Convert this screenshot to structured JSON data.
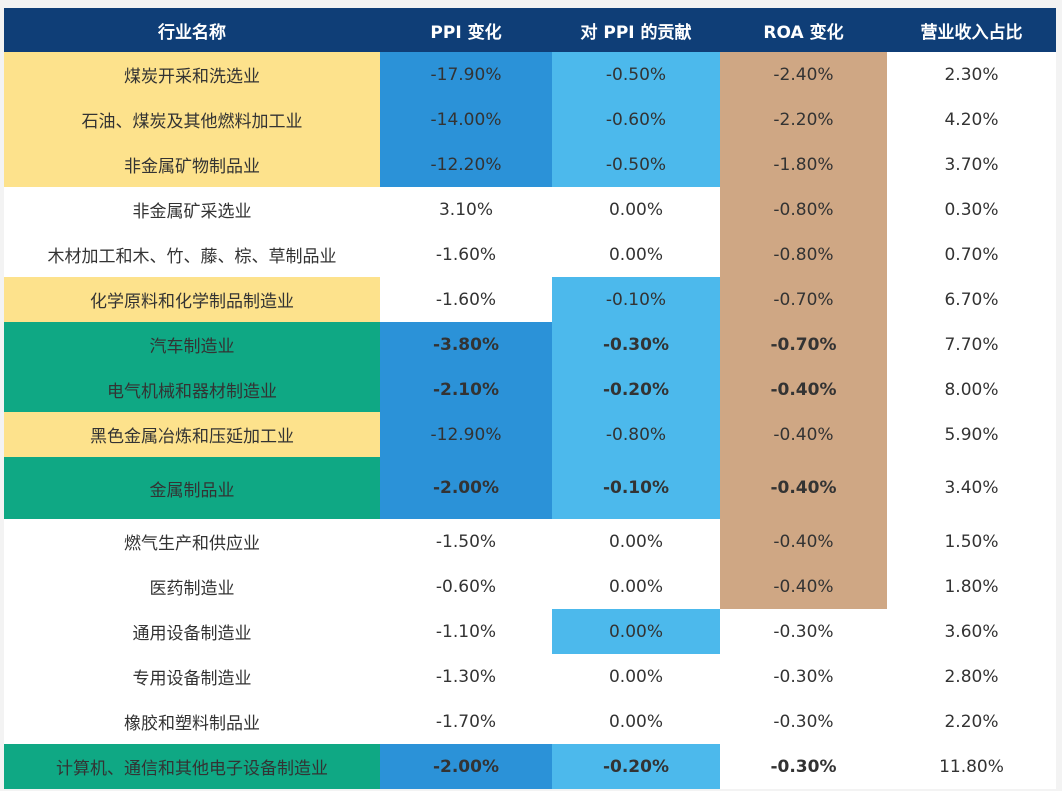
{
  "table": {
    "headers": [
      "行业名称",
      "PPI 变化",
      "对 PPI 的贡献",
      "ROA 变化",
      "营业收入占比"
    ],
    "rows": [
      {
        "name": "煤炭开采和洗选业",
        "ppi": "-17.90%",
        "contrib": "-0.50%",
        "roa": "-2.40%",
        "rev": "2.30%"
      },
      {
        "name": "石油、煤炭及其他燃料加工业",
        "ppi": "-14.00%",
        "contrib": "-0.60%",
        "roa": "-2.20%",
        "rev": "4.20%"
      },
      {
        "name": "非金属矿物制品业",
        "ppi": "-12.20%",
        "contrib": "-0.50%",
        "roa": "-1.80%",
        "rev": "3.70%"
      },
      {
        "name": "非金属矿采选业",
        "ppi": "3.10%",
        "contrib": "0.00%",
        "roa": "-0.80%",
        "rev": "0.30%"
      },
      {
        "name": "木材加工和木、竹、藤、棕、草制品业",
        "ppi": "-1.60%",
        "contrib": "0.00%",
        "roa": "-0.80%",
        "rev": "0.70%"
      },
      {
        "name": "化学原料和化学制品制造业",
        "ppi": "-1.60%",
        "contrib": "-0.10%",
        "roa": "-0.70%",
        "rev": "6.70%"
      },
      {
        "name": "汽车制造业",
        "ppi": "-3.80%",
        "contrib": "-0.30%",
        "roa": "-0.70%",
        "rev": "7.70%"
      },
      {
        "name": "电气机械和器材制造业",
        "ppi": "-2.10%",
        "contrib": "-0.20%",
        "roa": "-0.40%",
        "rev": "8.00%"
      },
      {
        "name": "黑色金属冶炼和压延加工业",
        "ppi": "-12.90%",
        "contrib": "-0.80%",
        "roa": "-0.40%",
        "rev": "5.90%"
      },
      {
        "name": "金属制品业",
        "ppi": "-2.00%",
        "contrib": "-0.10%",
        "roa": "-0.40%",
        "rev": "3.40%"
      },
      {
        "name": "燃气生产和供应业",
        "ppi": "-1.50%",
        "contrib": "0.00%",
        "roa": "-0.40%",
        "rev": "1.50%"
      },
      {
        "name": "医药制造业",
        "ppi": "-0.60%",
        "contrib": "0.00%",
        "roa": "-0.40%",
        "rev": "1.80%"
      },
      {
        "name": "通用设备制造业",
        "ppi": "-1.10%",
        "contrib": "0.00%",
        "roa": "-0.30%",
        "rev": "3.60%"
      },
      {
        "name": "专用设备制造业",
        "ppi": "-1.30%",
        "contrib": "0.00%",
        "roa": "-0.30%",
        "rev": "2.80%"
      },
      {
        "name": "橡胶和塑料制品业",
        "ppi": "-1.70%",
        "contrib": "0.00%",
        "roa": "-0.30%",
        "rev": "2.20%"
      },
      {
        "name": "计算机、通信和其他电子设备制造业",
        "ppi": "-2.00%",
        "contrib": "-0.20%",
        "roa": "-0.30%",
        "rev": "11.80%"
      }
    ]
  },
  "colors": {
    "header": "#0f3e77",
    "yellow": "#fde28c",
    "green": "#0fa884",
    "blue": "#2b92d8",
    "light_blue": "#4cb9ec",
    "tan": "#cfa784"
  }
}
